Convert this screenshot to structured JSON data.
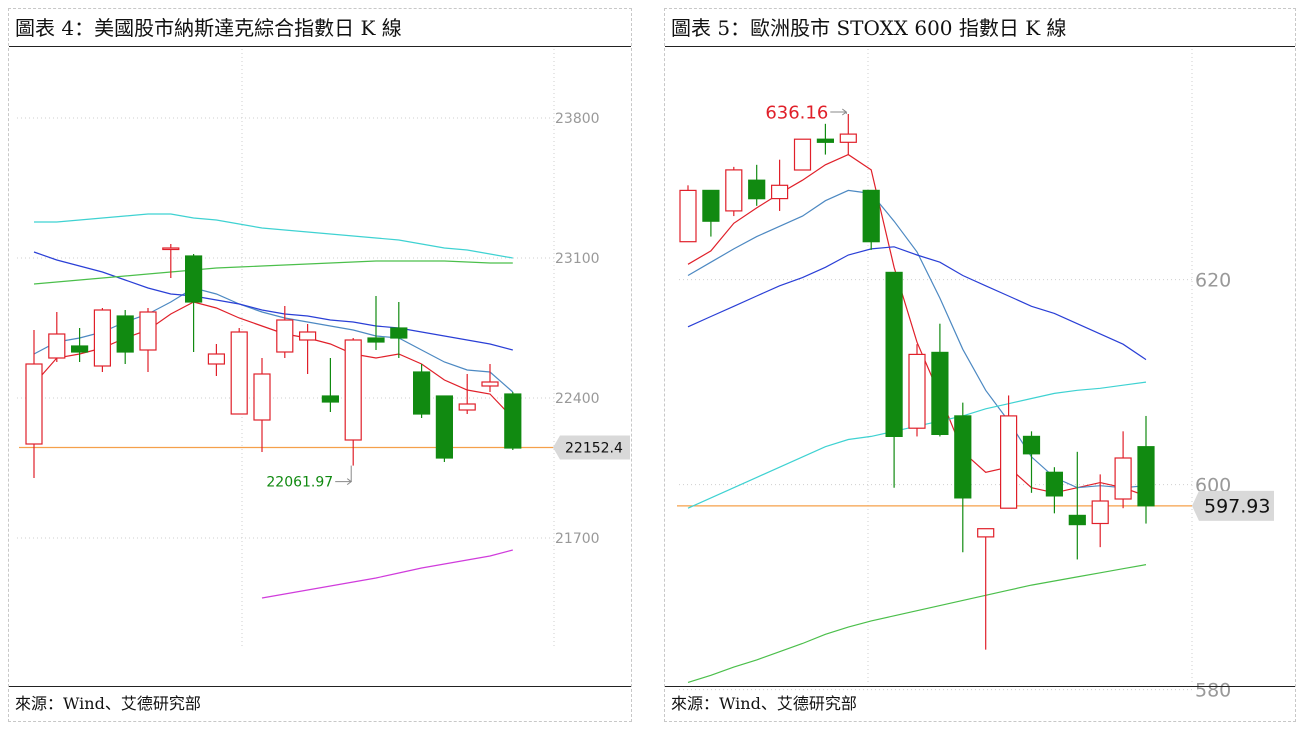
{
  "panels": [
    {
      "title": "圖表 4：美國股市納斯達克綜合指數日 K 線",
      "source": "來源：Wind、艾德研究部"
    },
    {
      "title": "圖表 5：歐洲股市 STOXX 600 指數日 K 線",
      "source": "來源：Wind、艾德研究部"
    }
  ],
  "colors": {
    "up": "#e0202a",
    "down": "#118a11",
    "ref_line": "#f5a04a",
    "grid": "#cfcfcf",
    "tick": "#999999"
  },
  "chart_data": [
    {
      "type": "candlestick",
      "title": "圖表 4：美國股市納斯達克綜合指數日 K 線",
      "yticks": [
        23800,
        23100,
        22400,
        21700
      ],
      "ylim": [
        21000,
        24100
      ],
      "current_value": "22152.4",
      "current_value_num": 22152.4,
      "low_annotation": {
        "label": "22061.97",
        "value": 22061.97,
        "index": 14
      },
      "candles": [
        {
          "o": 22170,
          "h": 22740,
          "l": 22000,
          "c": 22570
        },
        {
          "o": 22600,
          "h": 22830,
          "l": 22580,
          "c": 22720
        },
        {
          "o": 22660,
          "h": 22750,
          "l": 22580,
          "c": 22630
        },
        {
          "o": 22560,
          "h": 22850,
          "l": 22530,
          "c": 22840
        },
        {
          "o": 22810,
          "h": 22840,
          "l": 22570,
          "c": 22630
        },
        {
          "o": 22640,
          "h": 22850,
          "l": 22530,
          "c": 22830
        },
        {
          "o": 23150,
          "h": 23170,
          "l": 23000,
          "c": 23150
        },
        {
          "o": 23110,
          "h": 23120,
          "l": 22630,
          "c": 22880
        },
        {
          "o": 22570,
          "h": 22670,
          "l": 22510,
          "c": 22620
        },
        {
          "o": 22320,
          "h": 22750,
          "l": 22320,
          "c": 22730
        },
        {
          "o": 22290,
          "h": 22600,
          "l": 22130,
          "c": 22520
        },
        {
          "o": 22630,
          "h": 22860,
          "l": 22600,
          "c": 22790
        },
        {
          "o": 22690,
          "h": 22770,
          "l": 22520,
          "c": 22730
        },
        {
          "o": 22410,
          "h": 22600,
          "l": 22330,
          "c": 22380
        },
        {
          "o": 22190,
          "h": 22700,
          "l": 22062,
          "c": 22690
        },
        {
          "o": 22700,
          "h": 22910,
          "l": 22640,
          "c": 22680
        },
        {
          "o": 22750,
          "h": 22880,
          "l": 22600,
          "c": 22700
        },
        {
          "o": 22530,
          "h": 22570,
          "l": 22300,
          "c": 22320
        },
        {
          "o": 22410,
          "h": 22410,
          "l": 22080,
          "c": 22100
        },
        {
          "o": 22340,
          "h": 22520,
          "l": 22320,
          "c": 22370
        },
        {
          "o": 22460,
          "h": 22570,
          "l": 22430,
          "c": 22480
        },
        {
          "o": 22420,
          "h": 22430,
          "l": 22140,
          "c": 22150
        }
      ],
      "series": [
        {
          "color": "#e0202a",
          "values": [
            22470,
            22600,
            22620,
            22650,
            22700,
            22740,
            22820,
            22880,
            22850,
            22800,
            22760,
            22720,
            22700,
            22670,
            22620,
            22600,
            22620,
            22570,
            22490,
            22440,
            22420,
            22300
          ]
        },
        {
          "color": "#4d89c2",
          "values": [
            22620,
            22680,
            22700,
            22730,
            22780,
            22820,
            22880,
            22950,
            22920,
            22870,
            22830,
            22800,
            22780,
            22760,
            22740,
            22710,
            22700,
            22640,
            22580,
            22540,
            22530,
            22430
          ]
        },
        {
          "color": "#2a3fd6",
          "values": [
            23130,
            23090,
            23060,
            23030,
            22990,
            22950,
            22920,
            22910,
            22890,
            22870,
            22840,
            22820,
            22810,
            22790,
            22780,
            22760,
            22750,
            22730,
            22710,
            22690,
            22670,
            22640
          ]
        },
        {
          "color": "#3fd2d2",
          "values": [
            23280,
            23280,
            23290,
            23300,
            23310,
            23320,
            23320,
            23300,
            23290,
            23270,
            23250,
            23240,
            23230,
            23220,
            23210,
            23200,
            23190,
            23170,
            23150,
            23140,
            23120,
            23100
          ]
        },
        {
          "color": "#4bbf4b",
          "values": [
            22970,
            22980,
            22990,
            23000,
            23010,
            23020,
            23030,
            23040,
            23050,
            23055,
            23060,
            23065,
            23070,
            23075,
            23080,
            23085,
            23085,
            23085,
            23085,
            23080,
            23075,
            23075
          ]
        },
        {
          "color": "#d03cdc",
          "start": 10,
          "values": [
            21400,
            21420,
            21440,
            21460,
            21480,
            21500,
            21525,
            21550,
            21570,
            21590,
            21610,
            21640
          ]
        }
      ]
    },
    {
      "type": "candlestick",
      "title": "圖表 5：歐洲股市 STOXX 600 指數日 K 線",
      "yticks": [
        620,
        600,
        580
      ],
      "ylim": [
        578.5,
        642.5
      ],
      "current_value": "597.93",
      "current_value_num": 597.93,
      "high_annotation": {
        "label": "636.16",
        "value": 636.16,
        "index": 7
      },
      "candles": [
        {
          "o": 623.7,
          "h": 629.2,
          "l": 623.7,
          "c": 628.7
        },
        {
          "o": 628.7,
          "h": 628.7,
          "l": 624.2,
          "c": 625.7
        },
        {
          "o": 626.7,
          "h": 631.0,
          "l": 626.2,
          "c": 630.7
        },
        {
          "o": 629.7,
          "h": 631.2,
          "l": 627.2,
          "c": 627.9
        },
        {
          "o": 627.9,
          "h": 631.7,
          "l": 626.7,
          "c": 629.2
        },
        {
          "o": 630.7,
          "h": 633.7,
          "l": 630.7,
          "c": 633.7
        },
        {
          "o": 633.7,
          "h": 635.2,
          "l": 632.2,
          "c": 633.4
        },
        {
          "o": 633.4,
          "h": 636.16,
          "l": 632.2,
          "c": 634.2
        },
        {
          "o": 628.7,
          "h": 628.7,
          "l": 622.9,
          "c": 623.7
        },
        {
          "o": 620.7,
          "h": 620.7,
          "l": 599.7,
          "c": 604.7
        },
        {
          "o": 605.5,
          "h": 613.7,
          "l": 604.7,
          "c": 612.7
        },
        {
          "o": 612.9,
          "h": 615.7,
          "l": 604.7,
          "c": 604.9
        },
        {
          "o": 606.7,
          "h": 608.0,
          "l": 593.4,
          "c": 598.7
        },
        {
          "o": 594.9,
          "h": 595.7,
          "l": 583.9,
          "c": 595.7
        },
        {
          "o": 597.7,
          "h": 608.7,
          "l": 597.7,
          "c": 606.7
        },
        {
          "o": 604.7,
          "h": 605.2,
          "l": 599.2,
          "c": 603.0
        },
        {
          "o": 601.2,
          "h": 601.7,
          "l": 597.2,
          "c": 598.9
        },
        {
          "o": 597.0,
          "h": 603.2,
          "l": 592.7,
          "c": 596.1
        },
        {
          "o": 596.2,
          "h": 601.0,
          "l": 593.9,
          "c": 598.4
        },
        {
          "o": 598.6,
          "h": 605.2,
          "l": 597.7,
          "c": 602.6
        },
        {
          "o": 603.7,
          "h": 606.7,
          "l": 596.2,
          "c": 597.93
        }
      ],
      "series": [
        {
          "color": "#e0202a",
          "values": [
            621.5,
            622.8,
            625.5,
            627.0,
            628.4,
            629.7,
            631.2,
            632.2,
            630.7,
            621.2,
            613.9,
            608.7,
            603.2,
            601.2,
            601.7,
            599.7,
            599.2,
            599.7,
            600.2,
            599.7,
            598.9
          ]
        },
        {
          "color": "#4d89c2",
          "values": [
            620.4,
            621.7,
            623.0,
            624.2,
            625.2,
            626.2,
            627.7,
            628.7,
            628.4,
            625.7,
            622.7,
            618.2,
            613.2,
            609.2,
            606.2,
            602.7,
            600.7,
            599.7,
            599.9,
            599.7,
            599.9
          ]
        },
        {
          "color": "#2a3fd6",
          "values": [
            615.4,
            616.4,
            617.4,
            618.4,
            619.4,
            620.2,
            621.2,
            622.4,
            623.0,
            623.2,
            622.4,
            621.7,
            620.4,
            619.4,
            618.4,
            617.4,
            616.7,
            615.7,
            614.7,
            613.7,
            612.2
          ]
        },
        {
          "color": "#3fd2d2",
          "values": [
            597.7,
            598.7,
            599.7,
            600.7,
            601.7,
            602.7,
            603.7,
            604.4,
            604.7,
            605.2,
            605.7,
            606.2,
            606.7,
            607.4,
            607.9,
            608.4,
            608.9,
            609.2,
            609.4,
            609.7,
            610.0
          ]
        },
        {
          "color": "#4bbf4b",
          "values": [
            580.7,
            581.4,
            582.2,
            582.9,
            583.7,
            584.5,
            585.4,
            586.1,
            586.7,
            587.2,
            587.7,
            588.2,
            588.7,
            589.2,
            589.7,
            590.2,
            590.6,
            591.0,
            591.4,
            591.8,
            592.2
          ]
        }
      ]
    }
  ]
}
